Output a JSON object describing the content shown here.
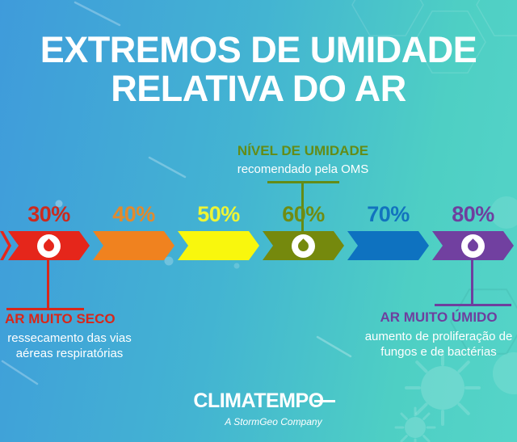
{
  "title": {
    "line1": "EXTREMOS DE UMIDADE",
    "line2": "RELATIVA DO AR"
  },
  "colors": {
    "background_left": "#3f9bdb",
    "background_right": "#55d4c8",
    "oms_green": "#648c17",
    "dry_red": "#d8271a",
    "humid_purple": "#6e3f9e",
    "text_white": "#ffffff"
  },
  "oms_callout": {
    "heading": "NÍVEL DE UMIDADE",
    "subheading": "recomendado pela OMS"
  },
  "scale": {
    "segments": [
      {
        "id": "30",
        "label": "30%",
        "color": "#e5261b",
        "label_color": "#cc2a1e",
        "droplet": true
      },
      {
        "id": "40",
        "label": "40%",
        "color": "#f0821f",
        "label_color": "#e18a2e",
        "droplet": false
      },
      {
        "id": "50",
        "label": "50%",
        "color": "#f9f70d",
        "label_color": "#eef535",
        "droplet": false
      },
      {
        "id": "60",
        "label": "60%",
        "color": "#75890d",
        "label_color": "#6f8c13",
        "droplet": true
      },
      {
        "id": "70",
        "label": "70%",
        "color": "#0e72c0",
        "label_color": "#1273be",
        "droplet": false
      },
      {
        "id": "80",
        "label": "80%",
        "color": "#7140a0",
        "label_color": "#6e3f9e",
        "droplet": true
      }
    ]
  },
  "dry_callout": {
    "heading": "AR MUITO SECO",
    "body_line1": "ressecamento das vias",
    "body_line2": "aéreas respiratórias"
  },
  "humid_callout": {
    "heading": "AR MUITO ÚMIDO",
    "body_line1": "aumento de proliferação de",
    "body_line2": "fungos e de bactérias"
  },
  "footer": {
    "brand": "CLIMATEMPO",
    "tagline": "A StormGeo Company"
  }
}
